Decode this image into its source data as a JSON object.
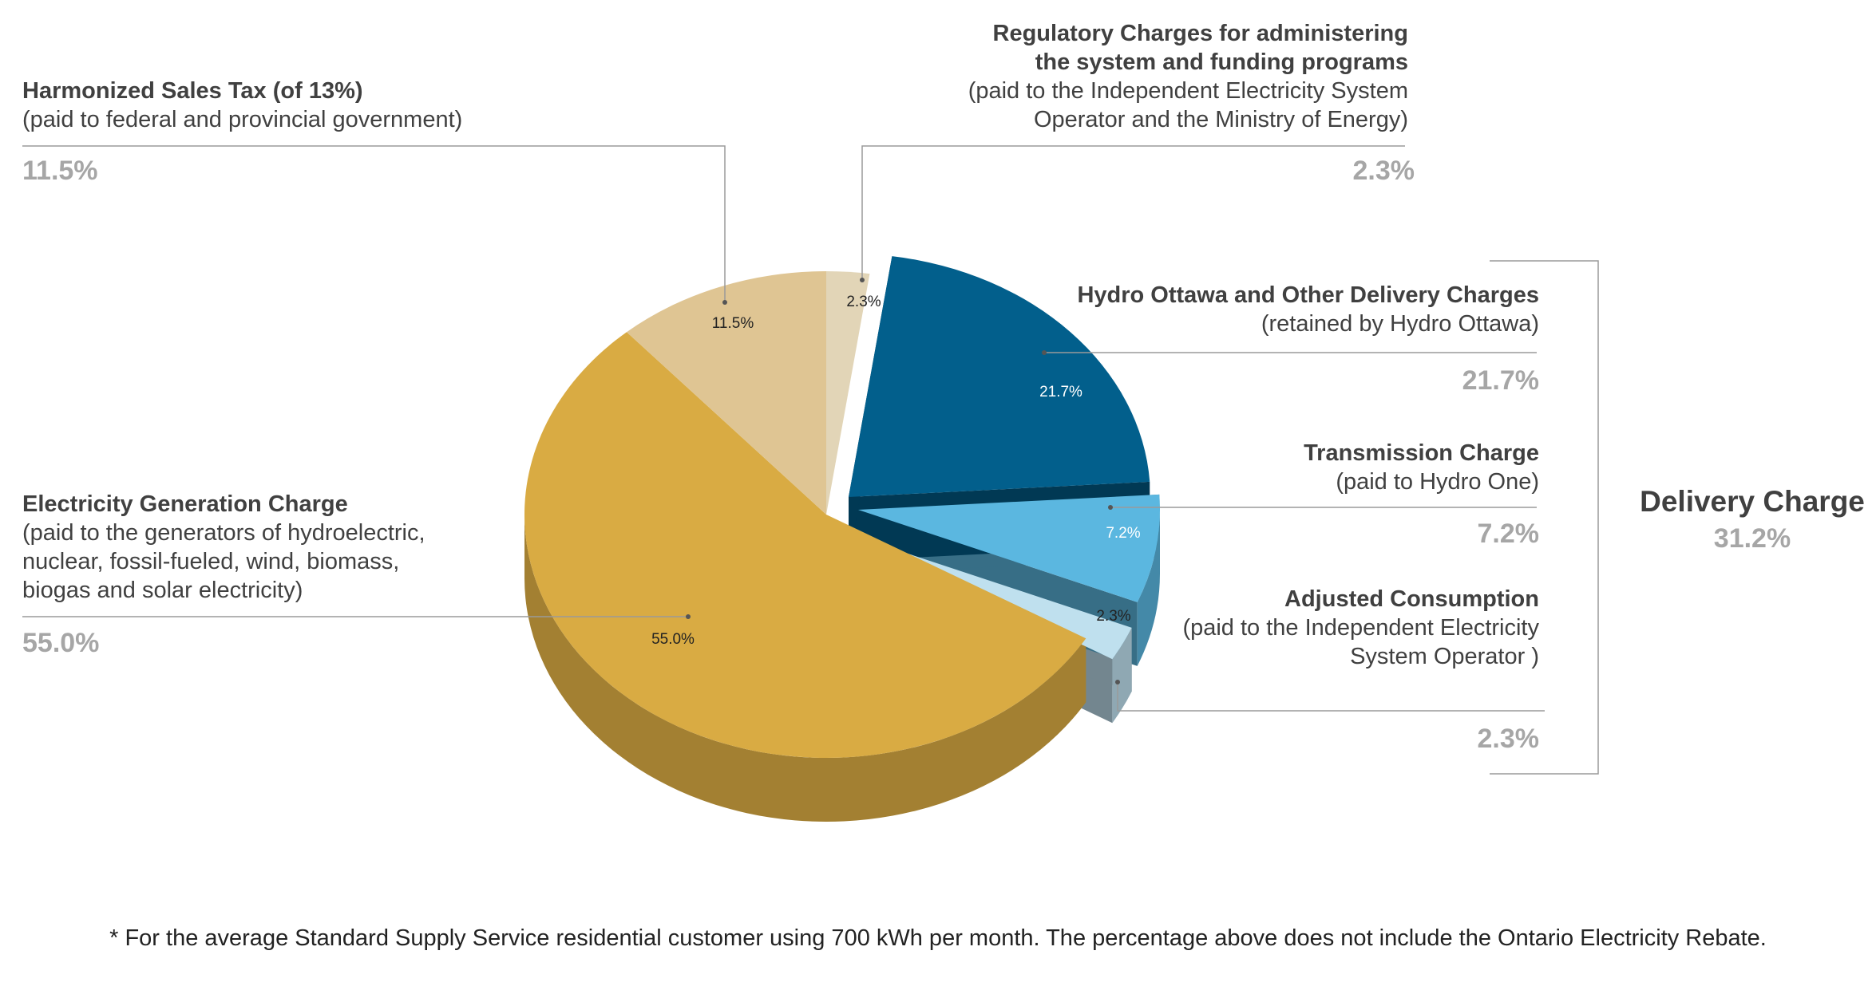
{
  "chart_data": {
    "type": "pie",
    "title": "",
    "slices": [
      {
        "key": "regulatory",
        "label": "Regulatory Charges for administering the system and funding programs",
        "value": 2.3,
        "inner_label": "2.3%",
        "color": "#e2d5b7",
        "exploded": false
      },
      {
        "key": "hydro",
        "label": "Hydro Ottawa and Other Delivery Charges",
        "value": 21.7,
        "inner_label": "21.7%",
        "color": "#025f8c",
        "exploded": true
      },
      {
        "key": "transmission",
        "label": "Transmission Charge",
        "value": 7.2,
        "inner_label": "7.2%",
        "color": "#5bb7e0",
        "exploded": true
      },
      {
        "key": "adjusted",
        "label": "Adjusted Consumption",
        "value": 2.3,
        "inner_label": "2.3%",
        "color": "#bfe0ee",
        "exploded": true
      },
      {
        "key": "generation",
        "label": "Electricity Generation Charge",
        "value": 55.0,
        "inner_label": "55.0%",
        "color": "#d9ab43",
        "exploded": false
      },
      {
        "key": "hst",
        "label": "Harmonized Sales Tax (of 13%)",
        "value": 11.5,
        "inner_label": "11.5%",
        "color": "#dfc593",
        "exploded": false
      }
    ]
  },
  "labels": {
    "hst": {
      "title": "Harmonized Sales Tax (of 13%)",
      "desc": [
        "(paid to federal and provincial government)"
      ],
      "pct": "11.5%"
    },
    "regulatory": {
      "title": [
        "Regulatory Charges for administering",
        "the system and funding programs"
      ],
      "desc": [
        "(paid to the Independent Electricity System ",
        "Operator and the Ministry of Energy)"
      ],
      "pct": "2.3%"
    },
    "hydro": {
      "title": "Hydro Ottawa and Other Delivery Charges",
      "desc": [
        "(retained by Hydro Ottawa)"
      ],
      "pct": "21.7%"
    },
    "transmission": {
      "title": "Transmission Charge",
      "desc": [
        "(paid to Hydro One)"
      ],
      "pct": "7.2%"
    },
    "adjusted": {
      "title": "Adjusted Consumption ",
      "desc": [
        "(paid to the Independent Electricity ",
        "System Operator )"
      ],
      "pct": "2.3%"
    },
    "generation": {
      "title": "Electricity Generation Charge",
      "desc": [
        "(paid to the generators of hydroelectric,",
        "nuclear, fossil-fueled, wind, biomass,",
        "biogas and solar electricity)"
      ],
      "pct": "55.0%"
    }
  },
  "delivery_group": {
    "title": "Delivery Charge",
    "pct": "31.2%"
  },
  "footnote": "* For the average Standard Supply Service residential customer using 700 kWh per month. The percentage above does not include the Ontario Electricity Rebate."
}
